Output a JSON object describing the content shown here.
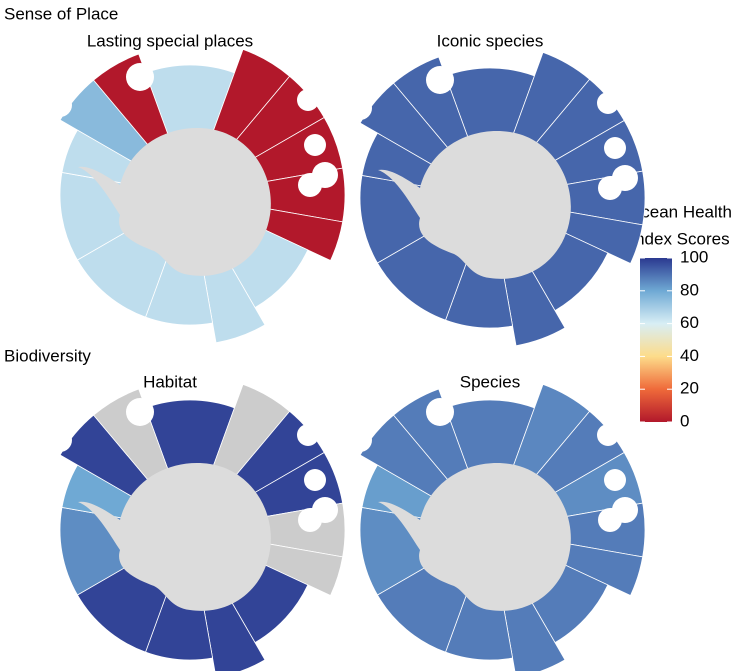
{
  "sections": [
    {
      "title": "Sense of Place",
      "panels": [
        {
          "title": "Lasting special places",
          "scores": [
            65,
            0,
            0,
            0,
            0,
            0,
            65,
            65,
            65,
            65,
            65,
            65,
            75,
            0
          ]
        },
        {
          "title": "Iconic species",
          "scores": [
            92,
            92,
            92,
            92,
            92,
            92,
            92,
            92,
            92,
            92,
            92,
            92,
            92,
            92
          ]
        }
      ]
    },
    {
      "title": "Biodiversity",
      "panels": [
        {
          "title": "Habitat",
          "scores": [
            98,
            null,
            98,
            98,
            null,
            null,
            98,
            98,
            98,
            98,
            85,
            80,
            98,
            null
          ]
        },
        {
          "title": "Species",
          "scores": [
            88,
            86,
            88,
            85,
            88,
            88,
            88,
            88,
            88,
            88,
            85,
            82,
            88,
            88
          ]
        }
      ]
    }
  ],
  "legend": {
    "title": [
      "Ocean Health",
      "Index Scores"
    ],
    "ticks": [
      0,
      20,
      40,
      60,
      80,
      100
    ],
    "colors": [
      "#b2182b",
      "#ef6a3a",
      "#fddc8a",
      "#d8eef5",
      "#6fa9d4",
      "#2b3990"
    ],
    "no_data_color": "#cccccc"
  }
}
